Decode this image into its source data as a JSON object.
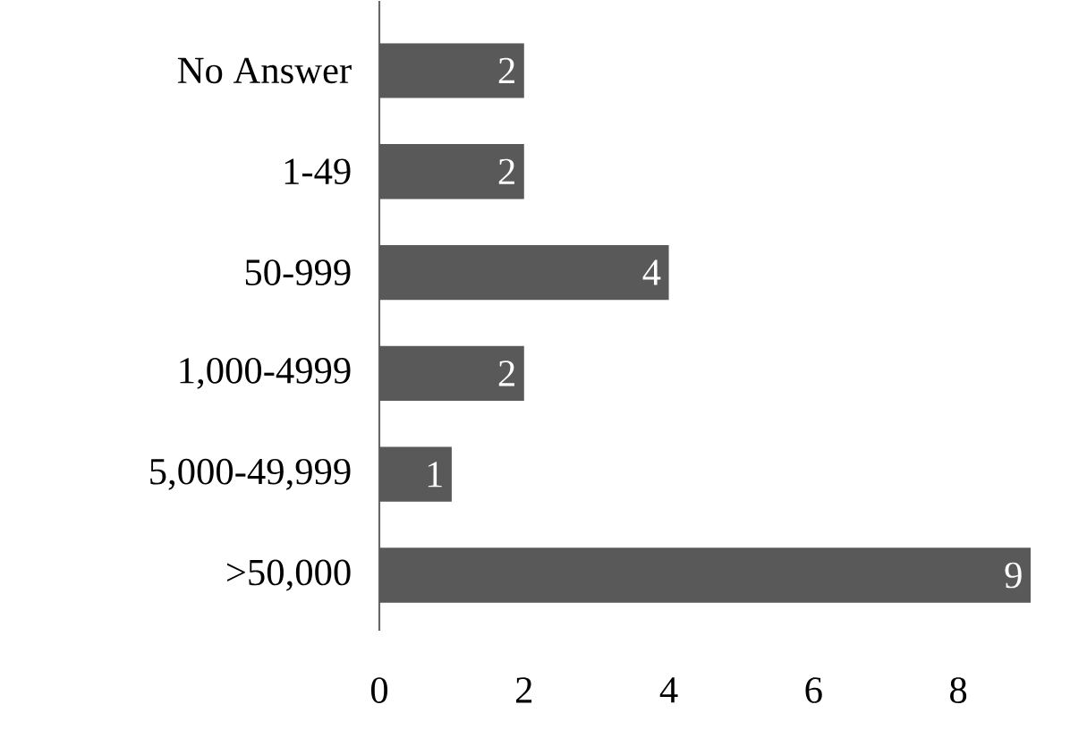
{
  "chart_data": {
    "type": "bar",
    "orientation": "horizontal",
    "categories": [
      "No Answer",
      "1-49",
      "50-999",
      "1,000-4999",
      "5,000-49,999",
      ">50,000"
    ],
    "values": [
      2,
      2,
      4,
      2,
      1,
      9
    ],
    "color": "#595959",
    "xlim": [
      0,
      9
    ],
    "xticks": [
      0,
      2,
      4,
      6,
      8
    ],
    "data_labels": true,
    "grid": false
  }
}
